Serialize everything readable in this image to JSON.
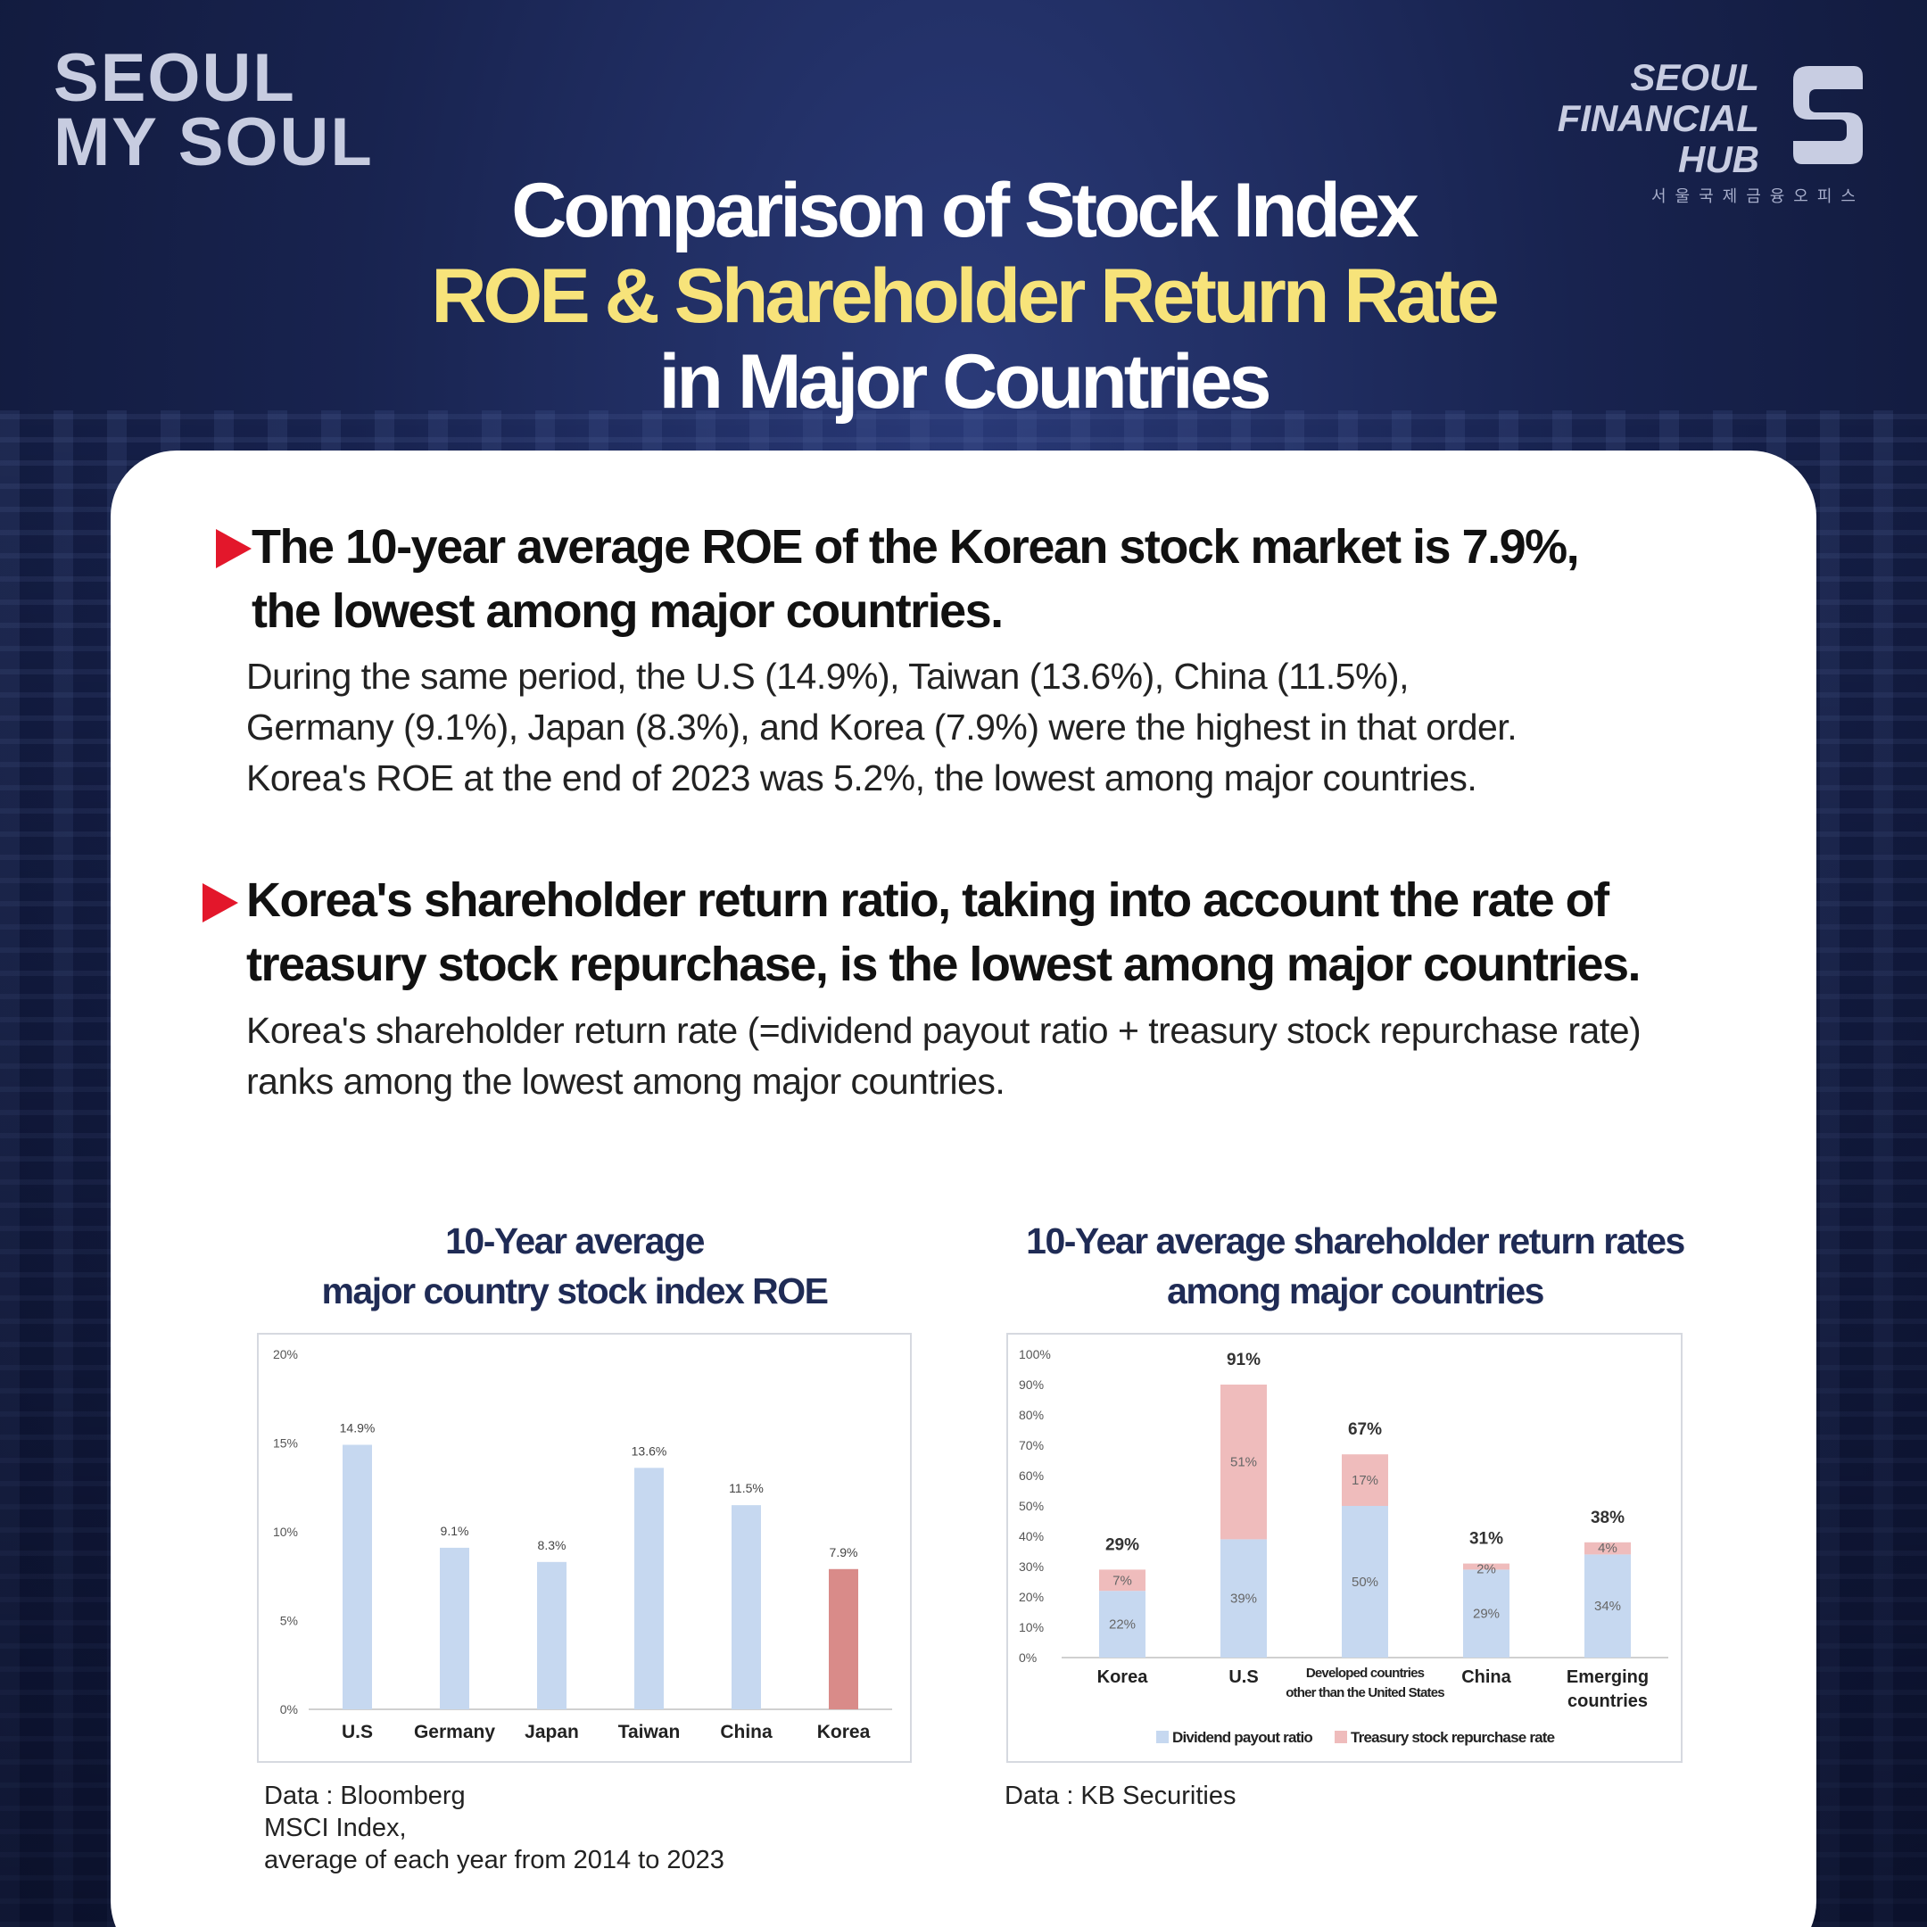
{
  "logo_left": {
    "line1": "SEOUL",
    "line2": "MY SOUL"
  },
  "logo_right": {
    "line1": "SEOUL",
    "line2": "FINANCIAL",
    "line3": "HUB",
    "sub": "서울국제금융오피스"
  },
  "title": {
    "line1": "Comparison of Stock Index",
    "line2": "ROE & Shareholder Return Rate",
    "line3": "in Major Countries"
  },
  "section1": {
    "heading_line1": "The 10-year average ROE of the Korean stock market is 7.9%,",
    "heading_line2": "the lowest among major countries.",
    "para_line1": "During the same period, the U.S (14.9%), Taiwan (13.6%), China (11.5%),",
    "para_line2": "Germany (9.1%), Japan (8.3%), and Korea (7.9%) were the highest in that order.",
    "para_line3": "Korea's ROE at the end of 2023 was 5.2%, the lowest among major countries."
  },
  "section2": {
    "heading_line1": "Korea's shareholder return ratio, taking into account the rate of",
    "heading_line2": "treasury stock repurchase, is the lowest among major countries.",
    "para_line1": "Korea's shareholder return rate (=dividend payout ratio + treasury stock repurchase rate)",
    "para_line2": "ranks among the lowest among major countries."
  },
  "chart1_source": {
    "line1": "Data : Bloomberg",
    "line2": "MSCI Index,",
    "line3": "average of each year from 2014 to 2023"
  },
  "chart2_source": {
    "line1": "Data : KB Securities"
  },
  "colors": {
    "accent_yellow": "#f7e37a",
    "bullet_red": "#e3172b",
    "bar_blue": "#c6d8f0",
    "bar_red": "#d98b89",
    "repurchase_pink": "#efbcbc",
    "title_navy": "#1f2b55"
  },
  "chart_data": [
    {
      "type": "bar",
      "title_line1": "10-Year average",
      "title_line2": "major country stock index ROE",
      "categories": [
        "U.S",
        "Germany",
        "Japan",
        "Taiwan",
        "China",
        "Korea"
      ],
      "values": [
        14.9,
        9.1,
        8.3,
        13.6,
        11.5,
        7.9
      ],
      "value_labels": [
        "14.9%",
        "9.1%",
        "8.3%",
        "13.6%",
        "11.5%",
        "7.9%"
      ],
      "highlight": "Korea",
      "ylim": [
        0,
        20
      ],
      "yticks": [
        "0%",
        "5%",
        "10%",
        "15%",
        "20%"
      ],
      "grid": false
    },
    {
      "type": "bar",
      "stacked": true,
      "title_line1": "10-Year average shareholder return rates",
      "title_line2": "among major countries",
      "categories": [
        [
          "Korea"
        ],
        [
          "U.S"
        ],
        [
          "Developed countries",
          "other than the United States"
        ],
        [
          "China"
        ],
        [
          "Emerging",
          "countries"
        ]
      ],
      "series": [
        {
          "name": "Dividend payout ratio",
          "values": [
            22,
            39,
            50,
            29,
            34
          ],
          "labels": [
            "22%",
            "39%",
            "50%",
            "29%",
            "34%"
          ]
        },
        {
          "name": "Treasury stock repurchase rate",
          "values": [
            7,
            51,
            17,
            2,
            4
          ],
          "labels": [
            "7%",
            "51%",
            "17%",
            "2%",
            "4%"
          ]
        }
      ],
      "totals": [
        "29%",
        "91%",
        "67%",
        "31%",
        "38%"
      ],
      "ylim": [
        0,
        100
      ],
      "yticks": [
        "0%",
        "10%",
        "20%",
        "30%",
        "40%",
        "50%",
        "60%",
        "70%",
        "80%",
        "90%",
        "100%"
      ],
      "legend": "bottom",
      "grid": false
    }
  ]
}
